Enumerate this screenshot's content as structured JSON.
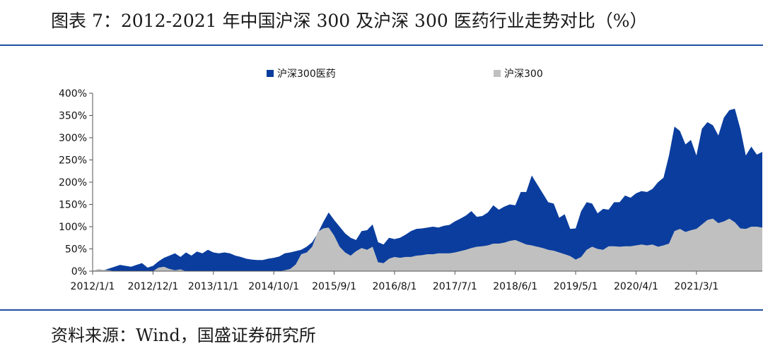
{
  "header": {
    "title": "图表 7：2012-2021 年中国沪深 300 及沪深 300 医药行业走势对比（%）"
  },
  "footer": {
    "source": "资料来源：Wind，国盛证券研究所"
  },
  "colors": {
    "pharma": "#0a3d9e",
    "csi300": "#c0c0c0",
    "rule": "#1f4fa0"
  },
  "chart_data": {
    "type": "area",
    "title": "",
    "xlabel": "",
    "ylabel": "",
    "ylim": [
      0,
      400
    ],
    "y_unit": "%",
    "y_ticks": [
      "0%",
      "50%",
      "100%",
      "150%",
      "200%",
      "250%",
      "300%",
      "350%",
      "400%"
    ],
    "x_tick_labels": [
      "2012/1/1",
      "2012/12/1",
      "2013/11/1",
      "2014/10/1",
      "2015/9/1",
      "2016/8/1",
      "2017/7/1",
      "2018/6/1",
      "2019/5/1",
      "2020/4/1",
      "2021/3/1"
    ],
    "legend_position": "top",
    "grid": false,
    "start": "2012-01",
    "frequency": "monthly",
    "series": [
      {
        "name": "沪深300医药",
        "color": "#0a3d9e",
        "values": [
          0,
          4,
          2,
          6,
          10,
          14,
          12,
          10,
          14,
          18,
          8,
          12,
          22,
          30,
          35,
          40,
          32,
          42,
          35,
          44,
          40,
          48,
          42,
          40,
          42,
          40,
          35,
          32,
          28,
          26,
          25,
          25,
          28,
          30,
          33,
          40,
          42,
          45,
          48,
          55,
          65,
          85,
          110,
          132,
          115,
          100,
          85,
          75,
          70,
          90,
          92,
          105,
          65,
          60,
          75,
          72,
          75,
          82,
          90,
          95,
          96,
          98,
          100,
          98,
          102,
          104,
          112,
          118,
          125,
          135,
          122,
          124,
          132,
          148,
          138,
          145,
          150,
          148,
          178,
          178,
          215,
          195,
          175,
          155,
          152,
          120,
          128,
          95,
          96,
          135,
          155,
          152,
          130,
          140,
          138,
          155,
          155,
          170,
          165,
          175,
          180,
          178,
          185,
          200,
          210,
          260,
          325,
          315,
          285,
          295,
          260,
          320,
          335,
          328,
          305,
          345,
          362,
          365,
          320,
          260,
          280,
          262,
          268
        ]
      },
      {
        "name": "沪深300",
        "color": "#c0c0c0",
        "values": [
          0,
          5,
          3,
          2,
          0,
          0,
          0,
          0,
          0,
          0,
          0,
          0,
          8,
          10,
          5,
          2,
          4,
          0,
          0,
          0,
          0,
          0,
          0,
          0,
          0,
          0,
          0,
          0,
          0,
          0,
          0,
          0,
          0,
          0,
          0,
          2,
          5,
          15,
          38,
          42,
          55,
          88,
          96,
          98,
          80,
          55,
          42,
          35,
          45,
          52,
          48,
          55,
          20,
          18,
          28,
          32,
          30,
          32,
          32,
          35,
          36,
          38,
          38,
          40,
          40,
          40,
          42,
          45,
          48,
          52,
          55,
          56,
          58,
          62,
          62,
          64,
          68,
          70,
          65,
          60,
          58,
          55,
          52,
          48,
          46,
          42,
          38,
          34,
          26,
          32,
          48,
          55,
          50,
          48,
          56,
          56,
          55,
          56,
          56,
          58,
          60,
          58,
          60,
          55,
          58,
          62,
          90,
          95,
          88,
          92,
          95,
          105,
          115,
          118,
          108,
          112,
          118,
          110,
          96,
          95,
          100,
          100,
          98
        ]
      }
    ]
  }
}
